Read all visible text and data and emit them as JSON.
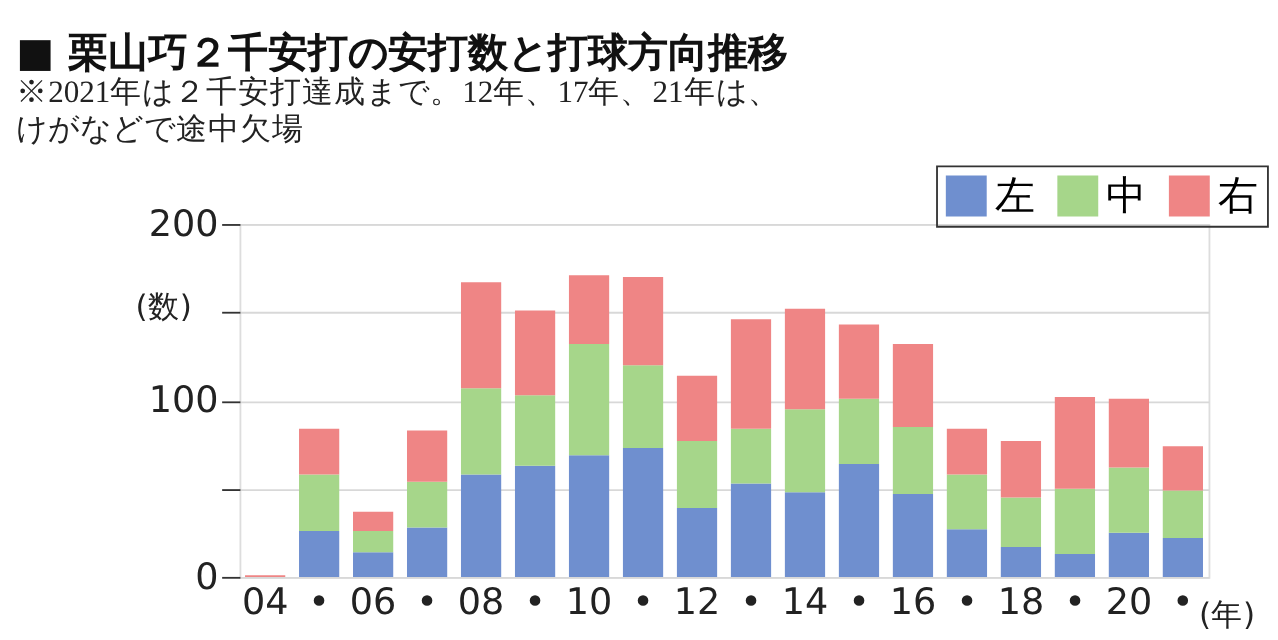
{
  "chart_data": {
    "type": "bar",
    "stacked": true,
    "title": "■ 栗山巧２千安打の安打数と打球方向推移",
    "subtitle": "※2021年は２千安打達成まで。12年、17年、21年は、",
    "annotations": [
      "けがなどで途中欠場"
    ],
    "xlabel": "(年)",
    "ylabel": "(数)",
    "categories": [
      "04",
      "•",
      "06",
      "•",
      "08",
      "•",
      "10",
      "•",
      "12",
      "•",
      "14",
      "•",
      "16",
      "•",
      "18",
      "•",
      "20",
      "•"
    ],
    "series": [
      {
        "name": "左",
        "color": "#6f8fcf",
        "values": [
          0,
          26,
          14,
          28,
          58,
          63,
          69,
          73,
          39,
          53,
          48,
          64,
          47,
          27,
          17,
          13,
          25,
          22
        ]
      },
      {
        "name": "中",
        "color": "#a6d68a",
        "values": [
          0,
          32,
          12,
          26,
          49,
          40,
          63,
          47,
          38,
          31,
          47,
          37,
          38,
          31,
          28,
          37,
          37,
          27
        ]
      },
      {
        "name": "右",
        "color": "#ef8585",
        "values": [
          1,
          26,
          11,
          29,
          60,
          48,
          39,
          50,
          37,
          62,
          57,
          42,
          47,
          26,
          32,
          52,
          39,
          25
        ]
      }
    ],
    "ylim": [
      0,
      200
    ],
    "yticks": [
      0,
      {
        "value": 50,
        "label": null
      },
      100,
      {
        "value": 150,
        "label": null
      },
      200
    ],
    "grid": "y",
    "legend": "top right"
  }
}
